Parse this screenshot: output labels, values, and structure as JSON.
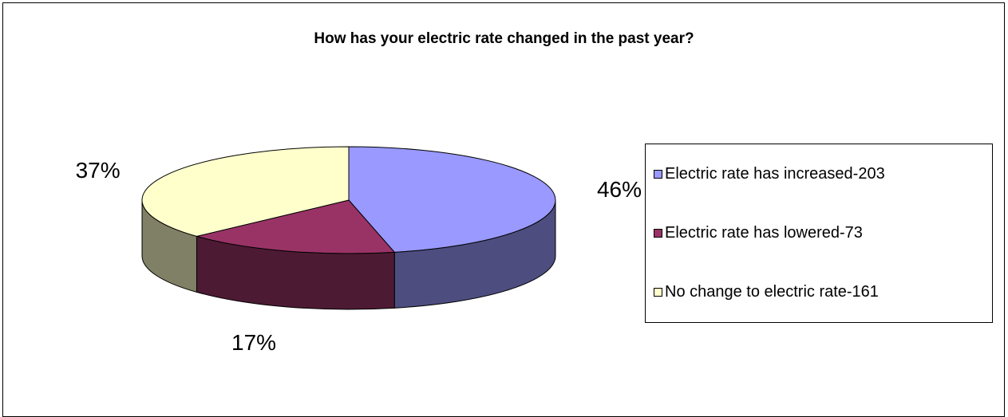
{
  "chart_data": {
    "type": "pie",
    "title": "How has your electric rate changed in the past year?",
    "slices": [
      {
        "label": "Electric rate has increased-203",
        "value": 203,
        "percent_label": "46%",
        "color": "#9999ff",
        "side_color": "#4d4d80"
      },
      {
        "label": "Electric rate has lowered-73",
        "value": 73,
        "percent_label": "17%",
        "color": "#993366",
        "side_color": "#4d1a33"
      },
      {
        "label": "No change to electric rate-161",
        "value": 161,
        "percent_label": "37%",
        "color": "#ffffcc",
        "side_color": "#808066"
      }
    ],
    "legend_position": "right",
    "grid": false
  }
}
